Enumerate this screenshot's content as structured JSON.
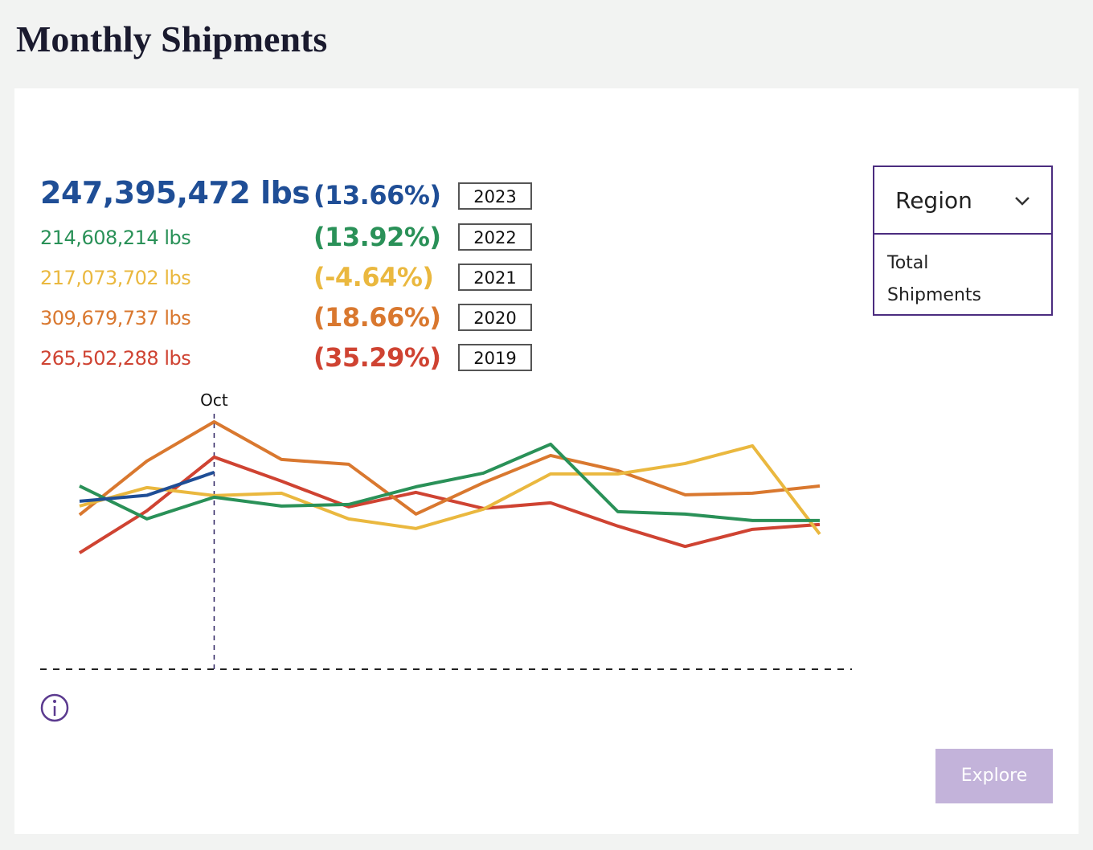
{
  "title": "Monthly Shipments",
  "chart_data": {
    "type": "line",
    "categories": [
      null,
      null,
      "Oct",
      null,
      null,
      null,
      null,
      null,
      null,
      null,
      null,
      null
    ],
    "ylim": [
      0,
      100
    ],
    "highlight": 2,
    "series": [
      {
        "name": "2023",
        "total": "247,395,472 lbs",
        "change": "(13.66%)",
        "color": "#1f4e96",
        "values": [
          62.8,
          65.0,
          73.6,
          null,
          null,
          null,
          null,
          null,
          null,
          null,
          null,
          null
        ]
      },
      {
        "name": "2022",
        "total": "214,608,214 lbs",
        "change": "(13.92%)",
        "color": "#2a9158",
        "values": [
          68.5,
          56.2,
          64.3,
          61.0,
          61.6,
          68.2,
          73.3,
          84.1,
          58.9,
          58.0,
          55.6,
          55.6
        ]
      },
      {
        "name": "2021",
        "total": "217,073,702 lbs",
        "change": "(-4.64%)",
        "color": "#eab83f",
        "values": [
          61.0,
          67.9,
          64.9,
          65.8,
          56.2,
          52.6,
          59.8,
          73.0,
          73.0,
          76.9,
          83.5,
          50.5
        ]
      },
      {
        "name": "2020",
        "total": "309,679,737 lbs",
        "change": "(18.66%)",
        "color": "#d9782f",
        "values": [
          57.7,
          77.8,
          92.5,
          78.4,
          76.6,
          58.0,
          69.7,
          79.9,
          74.2,
          65.2,
          65.8,
          68.5
        ]
      },
      {
        "name": "2019",
        "total": "265,502,288 lbs",
        "change": "(35.29%)",
        "color": "#cf4332",
        "values": [
          43.5,
          59.2,
          79.3,
          70.3,
          60.7,
          66.1,
          60.1,
          62.2,
          53.5,
          45.9,
          52.3,
          54.1
        ]
      }
    ]
  },
  "dropdown": {
    "label": "Region",
    "option": "Total Shipments"
  },
  "button": "Explore"
}
